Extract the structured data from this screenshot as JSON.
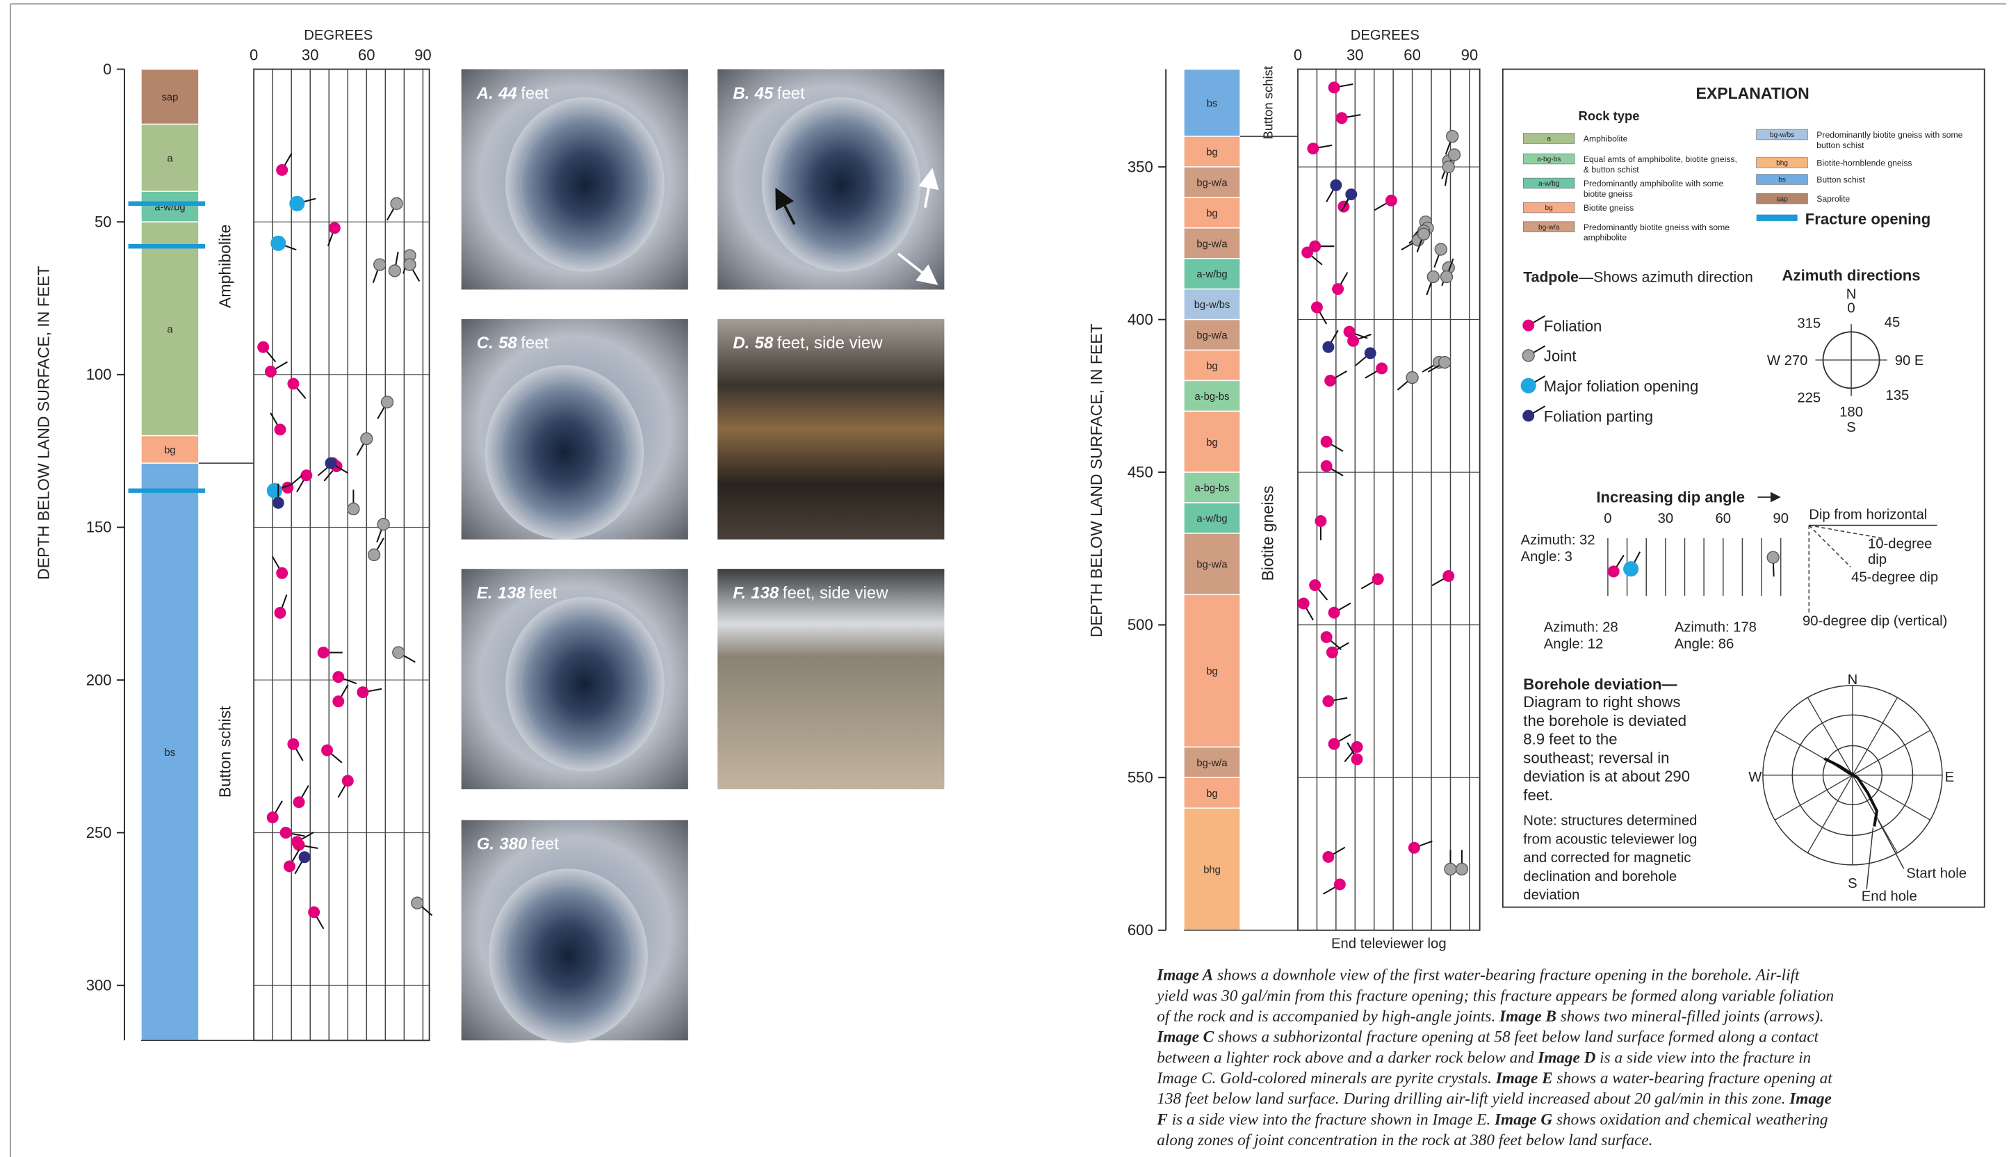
{
  "axis_label": "DEPTH BELOW LAND SURFACE, IN FEET",
  "degrees_label": "DEGREES",
  "rock_types": [
    {
      "code": "a",
      "label": "Amphibolite",
      "color": "#a9c18c"
    },
    {
      "code": "a-bg-bs",
      "label": "Equal amts of amphibolite, biotite gneiss, & button schist",
      "color": "#8fd0a3"
    },
    {
      "code": "a-w/bg",
      "label": "Predominantly amphibolite with some biotite gneiss",
      "color": "#6cc6a6"
    },
    {
      "code": "bg",
      "label": "Biotite gneiss",
      "color": "#f6aa85"
    },
    {
      "code": "bg-w/a",
      "label": "Predominantly biotite gneiss with some amphibolite",
      "color": "#cf9d82"
    },
    {
      "code": "bg-w/bs",
      "label": "Predominantly biotite gneiss with some button schist",
      "color": "#a8c4e0"
    },
    {
      "code": "bhg",
      "label": "Biotite-hornblende gneiss",
      "color": "#f7b680"
    },
    {
      "code": "bs",
      "label": "Button schist",
      "color": "#72ade2"
    },
    {
      "code": "sap",
      "label": "Saprolite",
      "color": "#b3856a"
    }
  ],
  "logs": [
    {
      "ylim": [
        0,
        318
      ],
      "yticks": [
        0,
        50,
        100,
        150,
        200,
        250,
        300
      ],
      "xlim": [
        0,
        90
      ],
      "xticks": [
        0,
        30,
        60,
        90
      ],
      "xgrid": [
        0,
        10,
        20,
        30,
        40,
        50,
        60,
        70,
        80,
        90
      ],
      "units": [
        {
          "code": "sap",
          "top": 0,
          "bottom": 18
        },
        {
          "code": "a",
          "top": 18,
          "bottom": 40
        },
        {
          "code": "a-w/bg",
          "top": 40,
          "bottom": 50
        },
        {
          "code": "a",
          "top": 50,
          "bottom": 120
        },
        {
          "code": "bg",
          "top": 120,
          "bottom": 129
        },
        {
          "code": "bs",
          "top": 129,
          "bottom": 318
        }
      ],
      "unit_labels": [
        {
          "label": "Amphibolite",
          "top": 0,
          "bottom": 129
        },
        {
          "label": "Button schist",
          "top": 129,
          "bottom": 318
        }
      ],
      "fractures": [
        44,
        58,
        138
      ],
      "tadpoles": [
        {
          "d": 33,
          "dip": 15,
          "az": 30,
          "k": "f"
        },
        {
          "d": 44,
          "dip": 23,
          "az": 75,
          "k": "o"
        },
        {
          "d": 52,
          "dip": 43,
          "az": 200,
          "k": "f"
        },
        {
          "d": 57,
          "dip": 13,
          "az": 110,
          "k": "o"
        },
        {
          "d": 44,
          "dip": 76,
          "az": 210,
          "k": "j"
        },
        {
          "d": 64,
          "dip": 67,
          "az": 200,
          "k": "j"
        },
        {
          "d": 66,
          "dip": 75,
          "az": 10,
          "k": "j"
        },
        {
          "d": 61,
          "dip": 83,
          "az": 200,
          "k": "j"
        },
        {
          "d": 64,
          "dip": 83,
          "az": 150,
          "k": "j"
        },
        {
          "d": 91,
          "dip": 5,
          "az": 140,
          "k": "f"
        },
        {
          "d": 99,
          "dip": 9,
          "az": 60,
          "k": "f"
        },
        {
          "d": 103,
          "dip": 21,
          "az": 140,
          "k": "f"
        },
        {
          "d": 118,
          "dip": 14,
          "az": 330,
          "k": "f"
        },
        {
          "d": 129,
          "dip": 42,
          "az": 230,
          "k": "f"
        },
        {
          "d": 130,
          "dip": 44,
          "az": 220,
          "k": "f"
        },
        {
          "d": 133,
          "dip": 28,
          "az": 210,
          "k": "f"
        },
        {
          "d": 137,
          "dip": 18,
          "az": 50,
          "k": "f"
        },
        {
          "d": 138,
          "dip": 11,
          "az": 70,
          "k": "o"
        },
        {
          "d": 142,
          "dip": 13,
          "az": 0,
          "k": "p"
        },
        {
          "d": 129,
          "dip": 41,
          "az": 120,
          "k": "p"
        },
        {
          "d": 109,
          "dip": 71,
          "az": 210,
          "k": "j"
        },
        {
          "d": 121,
          "dip": 60,
          "az": 210,
          "k": "j"
        },
        {
          "d": 144,
          "dip": 53,
          "az": 0,
          "k": "j"
        },
        {
          "d": 149,
          "dip": 69,
          "az": 200,
          "k": "j"
        },
        {
          "d": 159,
          "dip": 64,
          "az": 30,
          "k": "j"
        },
        {
          "d": 165,
          "dip": 15,
          "az": 330,
          "k": "f"
        },
        {
          "d": 178,
          "dip": 14,
          "az": 20,
          "k": "f"
        },
        {
          "d": 191,
          "dip": 37,
          "az": 90,
          "k": "f"
        },
        {
          "d": 199,
          "dip": 45,
          "az": 110,
          "k": "f"
        },
        {
          "d": 204,
          "dip": 58,
          "az": 80,
          "k": "f"
        },
        {
          "d": 207,
          "dip": 45,
          "az": 30,
          "k": "f"
        },
        {
          "d": 221,
          "dip": 21,
          "az": 150,
          "k": "f"
        },
        {
          "d": 223,
          "dip": 39,
          "az": 130,
          "k": "f"
        },
        {
          "d": 233,
          "dip": 50,
          "az": 210,
          "k": "f"
        },
        {
          "d": 240,
          "dip": 24,
          "az": 30,
          "k": "f"
        },
        {
          "d": 245,
          "dip": 10,
          "az": 30,
          "k": "f"
        },
        {
          "d": 250,
          "dip": 17,
          "az": 100,
          "k": "f"
        },
        {
          "d": 253,
          "dip": 23,
          "az": 60,
          "k": "f"
        },
        {
          "d": 254,
          "dip": 24,
          "az": 100,
          "k": "f"
        },
        {
          "d": 261,
          "dip": 19,
          "az": 30,
          "k": "f"
        },
        {
          "d": 258,
          "dip": 27,
          "az": 210,
          "k": "p"
        },
        {
          "d": 276,
          "dip": 32,
          "az": 150,
          "k": "f"
        },
        {
          "d": 191,
          "dip": 77,
          "az": 120,
          "k": "j"
        },
        {
          "d": 273,
          "dip": 87,
          "az": 130,
          "k": "j"
        }
      ]
    },
    {
      "ylim": [
        318,
        600
      ],
      "yticks": [
        350,
        400,
        450,
        500,
        550,
        600
      ],
      "xlim": [
        0,
        90
      ],
      "xticks": [
        0,
        30,
        60,
        90
      ],
      "xgrid": [
        0,
        10,
        20,
        30,
        40,
        50,
        60,
        70,
        80,
        90
      ],
      "units": [
        {
          "code": "bs",
          "top": 318,
          "bottom": 340
        },
        {
          "code": "bg",
          "top": 340,
          "bottom": 350
        },
        {
          "code": "bg-w/a",
          "top": 350,
          "bottom": 360
        },
        {
          "code": "bg",
          "top": 360,
          "bottom": 370
        },
        {
          "code": "bg-w/a",
          "top": 370,
          "bottom": 380
        },
        {
          "code": "a-w/bg",
          "top": 380,
          "bottom": 390
        },
        {
          "code": "bg-w/bs",
          "top": 390,
          "bottom": 400
        },
        {
          "code": "bg-w/a",
          "top": 400,
          "bottom": 410
        },
        {
          "code": "bg",
          "top": 410,
          "bottom": 420
        },
        {
          "code": "a-bg-bs",
          "top": 420,
          "bottom": 430
        },
        {
          "code": "bg",
          "top": 430,
          "bottom": 450
        },
        {
          "code": "a-bg-bs",
          "top": 450,
          "bottom": 460
        },
        {
          "code": "a-w/bg",
          "top": 460,
          "bottom": 470
        },
        {
          "code": "bg-w/a",
          "top": 470,
          "bottom": 490
        },
        {
          "code": "bg",
          "top": 490,
          "bottom": 540
        },
        {
          "code": "bg-w/a",
          "top": 540,
          "bottom": 550
        },
        {
          "code": "bg",
          "top": 550,
          "bottom": 560
        },
        {
          "code": "bhg",
          "top": 560,
          "bottom": 600
        }
      ],
      "unit_labels": [
        {
          "label": "Button schist",
          "top": 318,
          "bottom": 340
        },
        {
          "label": "Biotite gneiss",
          "top": 340,
          "bottom": 600
        }
      ],
      "end_label": "End televiewer log",
      "tadpoles": [
        {
          "d": 324,
          "dip": 19,
          "az": 80,
          "k": "f"
        },
        {
          "d": 334,
          "dip": 23,
          "az": 80,
          "k": "f"
        },
        {
          "d": 344,
          "dip": 8,
          "az": 80,
          "k": "f"
        },
        {
          "d": 363,
          "dip": 24,
          "az": 30,
          "k": "f"
        },
        {
          "d": 361,
          "dip": 49,
          "az": 240,
          "k": "f"
        },
        {
          "d": 376,
          "dip": 9,
          "az": 90,
          "k": "f"
        },
        {
          "d": 378,
          "dip": 5,
          "az": 130,
          "k": "f"
        },
        {
          "d": 390,
          "dip": 21,
          "az": 30,
          "k": "f"
        },
        {
          "d": 396,
          "dip": 10,
          "az": 150,
          "k": "f"
        },
        {
          "d": 404,
          "dip": 27,
          "az": 110,
          "k": "f"
        },
        {
          "d": 407,
          "dip": 29,
          "az": 70,
          "k": "f"
        },
        {
          "d": 416,
          "dip": 44,
          "az": 240,
          "k": "f"
        },
        {
          "d": 420,
          "dip": 17,
          "az": 60,
          "k": "f"
        },
        {
          "d": 440,
          "dip": 15,
          "az": 120,
          "k": "f"
        },
        {
          "d": 448,
          "dip": 15,
          "az": 120,
          "k": "f"
        },
        {
          "d": 466,
          "dip": 12,
          "az": 180,
          "k": "f"
        },
        {
          "d": 485,
          "dip": 42,
          "az": 240,
          "k": "f"
        },
        {
          "d": 484,
          "dip": 79,
          "az": 240,
          "k": "f"
        },
        {
          "d": 487,
          "dip": 9,
          "az": 140,
          "k": "f"
        },
        {
          "d": 493,
          "dip": 3,
          "az": 150,
          "k": "f"
        },
        {
          "d": 496,
          "dip": 19,
          "az": 60,
          "k": "f"
        },
        {
          "d": 504,
          "dip": 15,
          "az": 130,
          "k": "f"
        },
        {
          "d": 509,
          "dip": 18,
          "az": 60,
          "k": "f"
        },
        {
          "d": 525,
          "dip": 16,
          "az": 80,
          "k": "f"
        },
        {
          "d": 539,
          "dip": 19,
          "az": 60,
          "k": "f"
        },
        {
          "d": 540,
          "dip": 31,
          "az": 220,
          "k": "f"
        },
        {
          "d": 544,
          "dip": 31,
          "az": 330,
          "k": "f"
        },
        {
          "d": 573,
          "dip": 61,
          "az": 70,
          "k": "f"
        },
        {
          "d": 576,
          "dip": 16,
          "az": 60,
          "k": "f"
        },
        {
          "d": 585,
          "dip": 22,
          "az": 240,
          "k": "f"
        },
        {
          "d": 356,
          "dip": 20,
          "az": 210,
          "k": "p"
        },
        {
          "d": 359,
          "dip": 28,
          "az": 210,
          "k": "p"
        },
        {
          "d": 409,
          "dip": 16,
          "az": 30,
          "k": "p"
        },
        {
          "d": 411,
          "dip": 38,
          "az": 230,
          "k": "p"
        },
        {
          "d": 340,
          "dip": 81,
          "az": 200,
          "k": "j"
        },
        {
          "d": 348,
          "dip": 79,
          "az": 200,
          "k": "j"
        },
        {
          "d": 346,
          "dip": 82,
          "az": 210,
          "k": "j"
        },
        {
          "d": 350,
          "dip": 79,
          "az": 190,
          "k": "j"
        },
        {
          "d": 368,
          "dip": 67,
          "az": 220,
          "k": "j"
        },
        {
          "d": 370,
          "dip": 68,
          "az": 220,
          "k": "j"
        },
        {
          "d": 371,
          "dip": 66,
          "az": 230,
          "k": "j"
        },
        {
          "d": 374,
          "dip": 63,
          "az": 240,
          "k": "j"
        },
        {
          "d": 372,
          "dip": 66,
          "az": 200,
          "k": "j"
        },
        {
          "d": 377,
          "dip": 75,
          "az": 200,
          "k": "j"
        },
        {
          "d": 383,
          "dip": 79,
          "az": 200,
          "k": "j"
        },
        {
          "d": 386,
          "dip": 71,
          "az": 200,
          "k": "j"
        },
        {
          "d": 386,
          "dip": 78,
          "az": 20,
          "k": "j"
        },
        {
          "d": 414,
          "dip": 74,
          "az": 240,
          "k": "j"
        },
        {
          "d": 414,
          "dip": 77,
          "az": 240,
          "k": "j"
        },
        {
          "d": 419,
          "dip": 60,
          "az": 230,
          "k": "j"
        },
        {
          "d": 580,
          "dip": 80,
          "az": 0,
          "k": "j"
        },
        {
          "d": 580,
          "dip": 86,
          "az": 0,
          "k": "j"
        }
      ]
    }
  ],
  "photos": [
    {
      "letter": "A.",
      "depth": 44,
      "text": "feet"
    },
    {
      "letter": "B.",
      "depth": 45,
      "text": "feet"
    },
    {
      "letter": "C.",
      "depth": 58,
      "text": "feet"
    },
    {
      "letter": "D.",
      "depth": 58,
      "text": "feet, side view"
    },
    {
      "letter": "E.",
      "depth": 138,
      "text": "feet"
    },
    {
      "letter": "F.",
      "depth": 138,
      "text": "feet, side view"
    },
    {
      "letter": "G.",
      "depth": 380,
      "text": "feet"
    }
  ],
  "explanation": {
    "title": "EXPLANATION",
    "rock_type_title": "Rock type",
    "fracture_label": "Fracture opening",
    "fracture_color": "#1b9ad7",
    "tadpole_title": "Tadpole",
    "tadpole_desc": "—Shows azimuth direction",
    "tadpole_types": [
      {
        "k": "f",
        "label": "Foliation",
        "color": "#e4007c"
      },
      {
        "k": "j",
        "label": "Joint",
        "color": "#a3a3a3"
      },
      {
        "k": "o",
        "label": "Major foliation opening",
        "color": "#1ea7e1"
      },
      {
        "k": "p",
        "label": "Foliation parting",
        "color": "#2c2f80"
      }
    ],
    "azimuth_title": "Azimuth directions",
    "compass_labels": [
      "N",
      0,
      45,
      "90 E",
      135,
      180,
      "S",
      225,
      "W 270",
      315
    ],
    "dip_title": "Increasing dip angle",
    "dip_ticks": [
      0,
      30,
      60,
      90
    ],
    "dip_grid": [
      0,
      10,
      20,
      30,
      40,
      50,
      60,
      70,
      80,
      90
    ],
    "azimuth_word": "Azimuth:",
    "angle_word": "Angle:",
    "examples": [
      {
        "k": "f",
        "azimuth": 32,
        "angle": 3
      },
      {
        "k": "o",
        "azimuth": 28,
        "angle": 12
      },
      {
        "k": "j",
        "azimuth": 178,
        "angle": 86
      }
    ],
    "dip_diagram_title": "Dip from horizontal",
    "dip_examples": [
      {
        "angle": 10,
        "label": "10-degree dip"
      },
      {
        "angle": 45,
        "label": "45-degree dip"
      },
      {
        "angle": 90,
        "label": "90-degree dip (vertical)"
      }
    ],
    "deviation_title": "Borehole deviation—",
    "deviation_text": "Diagram to right shows the borehole is deviated 8.9 feet to the southeast; reversal in deviation is at about 290 feet.",
    "note": "Note: structures determined from acoustic televiewer log and corrected for magnetic declination and borehole deviation",
    "polar_labels": [
      "N",
      "E",
      "S",
      "W"
    ],
    "start_label": "Start hole",
    "end_label": "End hole"
  },
  "caption": [
    [
      {
        "text": "Image A",
        "bold": true
      },
      " shows a downhole view of the first water-bearing fracture opening in the borehole. Air-lift"
    ],
    [
      "yield was 30 gal/min from this fracture opening; this fracture appears be formed along variable foliation"
    ],
    [
      "of the rock and is accompanied by high-angle joints. ",
      {
        "text": "Image B",
        "bold": true
      },
      " shows two mineral-filled joints (arrows)."
    ],
    [
      {
        "text": "Image C",
        "bold": true
      },
      " shows a subhorizontal fracture opening at 58 feet below land surface formed along a contact"
    ],
    [
      "between a lighter rock above and a darker rock below and ",
      {
        "text": "Image D",
        "bold": true
      },
      " is a side view into the fracture in"
    ],
    [
      "Image C. Gold-colored minerals are pyrite crystals. ",
      {
        "text": "Image E",
        "bold": true
      },
      " shows a water-bearing fracture opening at"
    ],
    [
      "138 feet below land surface. During drilling air-lift yield increased about 20 gal/min in this zone. ",
      {
        "text": "Image",
        "bold": true
      }
    ],
    [
      {
        "text": "F",
        "bold": true
      },
      " is a side view into the fracture shown in Image E. ",
      {
        "text": "Image G",
        "bold": true
      },
      " shows oxidation and chemical weathering"
    ],
    [
      "along zones of joint concentration in the rock at 380 feet below land surface."
    ]
  ]
}
